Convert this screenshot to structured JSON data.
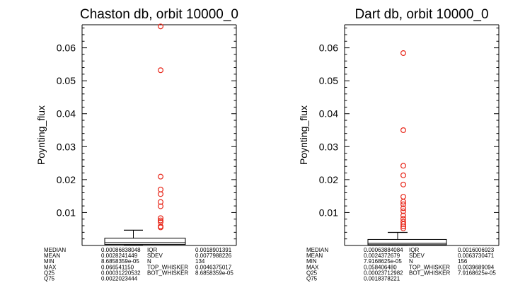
{
  "chart_data": [
    {
      "type": "box",
      "title": "Chaston db, orbit 10000_0",
      "ylabel": "Poynting_flux",
      "ylim": [
        0,
        0.067
      ],
      "yticks": [
        "0.01",
        "0.02",
        "0.03",
        "0.04",
        "0.05",
        "0.06"
      ],
      "box": {
        "q25": 0.00031220532,
        "median": 0.00086838048,
        "q75": 0.0022023444,
        "top_whisker": 0.0046375017,
        "bot_whisker": 8.6858359e-05
      },
      "outliers": [
        0.0665,
        0.0532,
        0.0209,
        0.017,
        0.0156,
        0.0132,
        0.0119,
        0.0083,
        0.0076,
        0.0071,
        0.0058,
        0.0055
      ],
      "stats": [
        {
          "label": "MEDIAN",
          "value": "0.00086838048",
          "label2": "IQR",
          "value2": "0.0018901391"
        },
        {
          "label": "MEAN",
          "value": "0.0028241449",
          "label2": "SDEV",
          "value2": "0.0077988226"
        },
        {
          "label": "MIN",
          "value": "8.6858359e-05",
          "label2": "N",
          "value2": "134"
        },
        {
          "label": "MAX",
          "value": "0.066541150",
          "label2": "TOP_WHISKER",
          "value2": "0.0046375017"
        },
        {
          "label": "Q25",
          "value": "0.00031220532",
          "label2": "BOT_WHISKER",
          "value2": "8.6858359e-05"
        },
        {
          "label": "Q75",
          "value": "0.0022023444",
          "label2": "",
          "value2": ""
        }
      ]
    },
    {
      "type": "box",
      "title": "Dart db, orbit 10000_0",
      "ylabel": "Poynting_flux",
      "ylim": [
        0,
        0.067
      ],
      "yticks": [
        "0.01",
        "0.02",
        "0.03",
        "0.04",
        "0.05",
        "0.06"
      ],
      "box": {
        "q25": 0.00023712982,
        "median": 0.00063884084,
        "q75": 0.0018378221,
        "top_whisker": 0.0039689094,
        "bot_whisker": 7.9168625e-05
      },
      "outliers": [
        0.0584,
        0.035,
        0.0242,
        0.0213,
        0.0185,
        0.0148,
        0.0133,
        0.0125,
        0.0113,
        0.0104,
        0.0091,
        0.0081,
        0.0072,
        0.0065,
        0.0058,
        0.0052
      ],
      "stats": [
        {
          "label": "MEDIAN",
          "value": "0.00063884084",
          "label2": "IQR",
          "value2": "0.0016006923"
        },
        {
          "label": "MEAN",
          "value": "0.0024372679",
          "label2": "SDEV",
          "value2": "0.0063730471"
        },
        {
          "label": "MIN",
          "value": "7.9168625e-05",
          "label2": "N",
          "value2": "156"
        },
        {
          "label": "MAX",
          "value": "0.058406480",
          "label2": "TOP_WHISKER",
          "value2": "0.0039689094"
        },
        {
          "label": "Q25",
          "value": "0.00023712982",
          "label2": "BOT_WHISKER",
          "value2": "7.9168625e-05"
        },
        {
          "label": "Q75",
          "value": "0.0018378221",
          "label2": "",
          "value2": ""
        }
      ]
    }
  ],
  "colors": {
    "outlier": "#e8291c",
    "axes": "#000000"
  }
}
